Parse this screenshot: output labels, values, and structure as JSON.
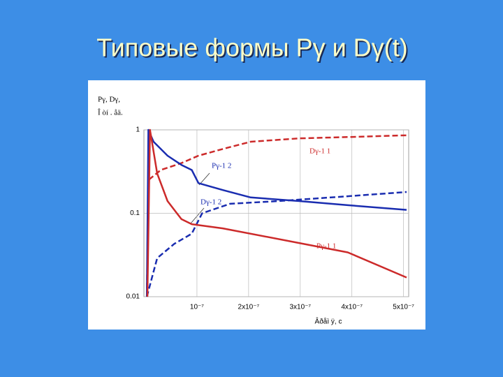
{
  "chart_data": {
    "type": "line",
    "title": "Типовые формы Pγ и Dγ(t)",
    "ylabel": [
      "Pγ, Dγ,",
      "Î òí . åä."
    ],
    "xlabel": "Âðåì ÿ,  c",
    "log_y": true,
    "grid": true,
    "xlim": [
      0,
      5.1e-07
    ],
    "ylim": [
      0.01,
      1
    ],
    "xticks": [
      {
        "value": 1e-07,
        "label": "10⁻⁷"
      },
      {
        "value": 2e-07,
        "label": "2x10⁻⁷"
      },
      {
        "value": 3e-07,
        "label": "3x10⁻⁷"
      },
      {
        "value": 4e-07,
        "label": "4x10⁻⁷"
      },
      {
        "value": 5e-07,
        "label": "5x10⁻⁷"
      }
    ],
    "yticks": [
      {
        "value": 0.01,
        "label": "0.01"
      },
      {
        "value": 0.1,
        "label": "0.1"
      },
      1
    ],
    "series": [
      {
        "name": "Dγ-1  1",
        "color": "#cc2a2a",
        "dashed": true,
        "x": [
          3e-09,
          6e-09,
          3e-08,
          7e-08,
          1.03e-07,
          1.5e-07,
          2.04e-07,
          2.98e-07,
          3.92e-07,
          5.06e-07
        ],
        "values": [
          0.01,
          0.25,
          0.33,
          0.4,
          0.49,
          0.59,
          0.72,
          0.79,
          0.82,
          0.86
        ]
      },
      {
        "name": "Pγ-1  2",
        "color": "#1a2db0",
        "dashed": false,
        "x": [
          3e-09,
          6e-09,
          1.6e-08,
          4.3e-08,
          7e-08,
          9e-08,
          1.03e-07,
          1.5e-07,
          2.04e-07,
          2.98e-07,
          3.92e-07,
          5.06e-07
        ],
        "values": [
          0.01,
          1,
          0.72,
          0.49,
          0.38,
          0.33,
          0.23,
          0.19,
          0.155,
          0.14,
          0.125,
          0.11
        ]
      },
      {
        "name": "Dγ-1  2",
        "color": "#1a2db0",
        "dashed": true,
        "x": [
          3e-09,
          2.3e-08,
          5.6e-08,
          9e-08,
          1.1e-07,
          1.64e-07,
          2.58e-07,
          3.92e-07,
          5.06e-07
        ],
        "values": [
          0.01,
          0.029,
          0.043,
          0.057,
          0.1,
          0.13,
          0.14,
          0.16,
          0.18
        ]
      },
      {
        "name": "Pγ-1  1",
        "color": "#cc2a2a",
        "dashed": false,
        "x": [
          4e-09,
          9e-09,
          2.3e-08,
          4.3e-08,
          7e-08,
          9e-08,
          1.5e-07,
          2.98e-07,
          3.92e-07,
          5.06e-07
        ],
        "values": [
          0.01,
          1,
          0.3,
          0.14,
          0.085,
          0.074,
          0.066,
          0.044,
          0.034,
          0.017
        ]
      }
    ]
  }
}
